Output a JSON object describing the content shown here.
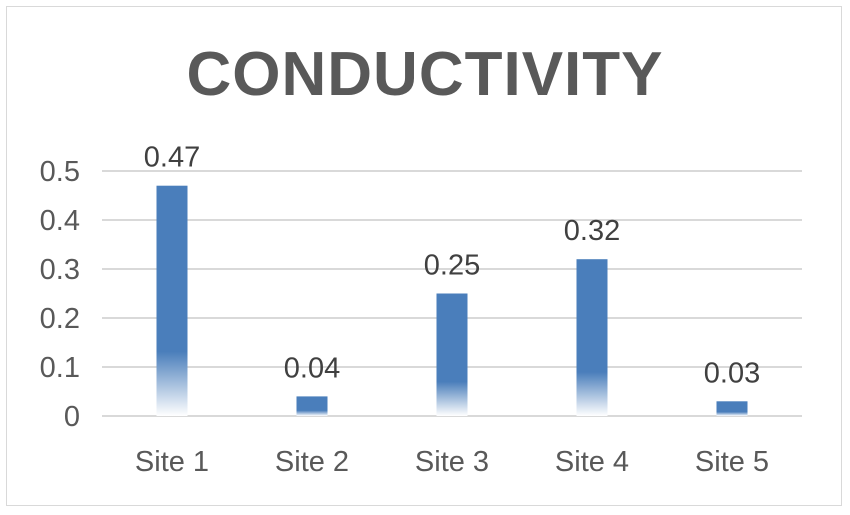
{
  "chart_data": {
    "type": "bar",
    "title": "CONDUCTIVITY",
    "categories": [
      "Site 1",
      "Site 2",
      "Site 3",
      "Site 4",
      "Site 5"
    ],
    "values": [
      0.47,
      0.04,
      0.25,
      0.32,
      0.03
    ],
    "data_labels": [
      "0.47",
      "0.04",
      "0.25",
      "0.32",
      "0.03"
    ],
    "yticks": [
      "0",
      "0.1",
      "0.2",
      "0.3",
      "0.4",
      "0.5"
    ],
    "ylim": [
      0,
      0.5
    ],
    "xlabel": "",
    "ylabel": "",
    "grid": true,
    "legend": "none",
    "colors": {
      "bar_top": "#4a7ebb",
      "bar_bottom": "#ffffff",
      "grid": "#d9d9d9",
      "axis": "#d9d9d9",
      "title": "#595959",
      "text": "#595959"
    }
  }
}
